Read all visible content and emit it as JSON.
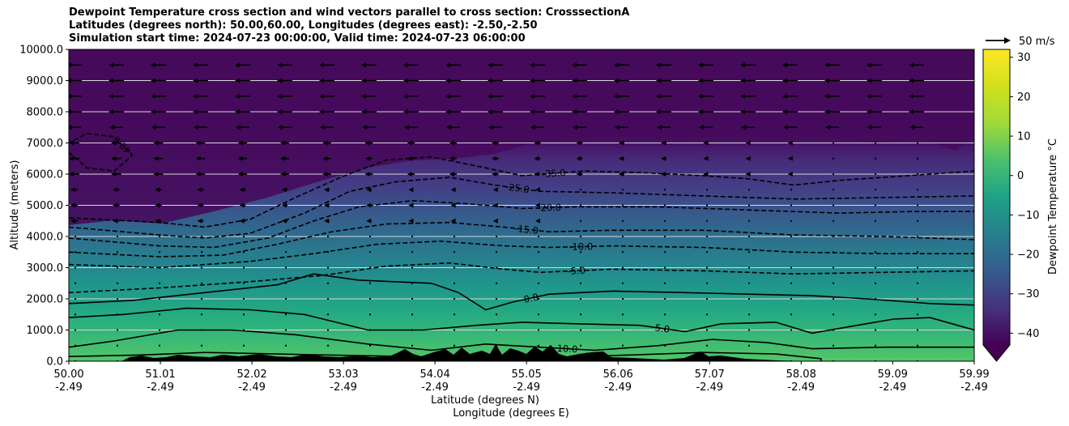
{
  "title_lines": [
    "Dewpoint Temperature cross section and wind vectors parallel to cross section: CrosssectionA",
    "Latitudes (degrees north): 50.00,60.00, Longitudes (degrees east): -2.50,-2.50",
    "Simulation start time: 2024-07-23 00:00:00, Valid time: 2024-07-23 06:00:00"
  ],
  "chart_data": {
    "type": "contour-cross-section",
    "ylabel": "Altitude (meters)",
    "xlabel_lines": [
      "Latitude (degrees N)",
      "Longitude (degrees E)"
    ],
    "xlim": [
      50.0,
      59.99
    ],
    "ylim": [
      0,
      10000
    ],
    "x_ticks": [
      {
        "lat": "50.00",
        "lon": "-2.49"
      },
      {
        "lat": "51.01",
        "lon": "-2.49"
      },
      {
        "lat": "52.02",
        "lon": "-2.49"
      },
      {
        "lat": "53.03",
        "lon": "-2.49"
      },
      {
        "lat": "54.04",
        "lon": "-2.49"
      },
      {
        "lat": "55.05",
        "lon": "-2.49"
      },
      {
        "lat": "56.06",
        "lon": "-2.49"
      },
      {
        "lat": "57.07",
        "lon": "-2.49"
      },
      {
        "lat": "58.08",
        "lon": "-2.49"
      },
      {
        "lat": "59.09",
        "lon": "-2.49"
      },
      {
        "lat": "59.99",
        "lon": "-2.49"
      }
    ],
    "y_ticks": [
      "0.0",
      "1000.0",
      "2000.0",
      "3000.0",
      "4000.0",
      "5000.0",
      "6000.0",
      "7000.0",
      "8000.0",
      "9000.0",
      "10000.0"
    ],
    "grid": "horizontal",
    "colorbar": {
      "label": "Dewpoint Temperature °C",
      "ticks": [
        "30",
        "20",
        "10",
        "0",
        "−10",
        "−20",
        "−30",
        "−40"
      ],
      "range": [
        -43,
        32
      ],
      "colormap": "viridis",
      "extend": "min"
    },
    "wind_key": "50 m/s",
    "contour_lines": [
      {
        "value": -40.0,
        "label": "-40.0",
        "style": "dashed",
        "points": [
          [
            50.0,
            6700
          ],
          [
            50.2,
            6200
          ],
          [
            50.5,
            6100
          ],
          [
            50.7,
            6600
          ],
          [
            50.5,
            7200
          ],
          [
            50.2,
            7300
          ],
          [
            50.0,
            7000
          ]
        ]
      },
      {
        "value": -35.0,
        "label": "-35.0",
        "style": "dashed",
        "points": [
          [
            50.0,
            4600
          ],
          [
            51.0,
            4450
          ],
          [
            51.5,
            4300
          ],
          [
            52.0,
            4550
          ],
          [
            52.5,
            5250
          ],
          [
            53.0,
            5900
          ],
          [
            53.5,
            6450
          ],
          [
            54.0,
            6550
          ],
          [
            54.6,
            6200
          ],
          [
            55.0,
            5950
          ],
          [
            55.7,
            6100
          ],
          [
            56.3,
            6050
          ],
          [
            57.0,
            5950
          ],
          [
            57.5,
            5850
          ],
          [
            58.0,
            5650
          ],
          [
            58.5,
            5800
          ],
          [
            59.0,
            5900
          ],
          [
            59.99,
            6100
          ]
        ]
      },
      {
        "value": -25.0,
        "label": "-25.0",
        "style": "dashed",
        "points": [
          [
            50.0,
            4300
          ],
          [
            51.0,
            4050
          ],
          [
            51.5,
            3950
          ],
          [
            52.0,
            4100
          ],
          [
            52.6,
            4750
          ],
          [
            53.1,
            5450
          ],
          [
            53.6,
            5750
          ],
          [
            54.2,
            5900
          ],
          [
            54.7,
            5650
          ],
          [
            55.2,
            5450
          ],
          [
            56.0,
            5400
          ],
          [
            57.0,
            5300
          ],
          [
            58.0,
            5200
          ],
          [
            59.0,
            5250
          ],
          [
            59.99,
            5300
          ]
        ]
      },
      {
        "value": -20.0,
        "label": "-20.0",
        "style": "dashed",
        "points": [
          [
            50.0,
            3950
          ],
          [
            51.0,
            3700
          ],
          [
            51.6,
            3650
          ],
          [
            52.2,
            3950
          ],
          [
            52.7,
            4500
          ],
          [
            53.2,
            4950
          ],
          [
            53.8,
            5150
          ],
          [
            54.4,
            5050
          ],
          [
            55.0,
            4900
          ],
          [
            55.6,
            4950
          ],
          [
            56.5,
            4950
          ],
          [
            57.5,
            4850
          ],
          [
            58.5,
            4750
          ],
          [
            59.3,
            4800
          ],
          [
            59.99,
            4800
          ]
        ]
      },
      {
        "value": -15.0,
        "label": "-15.0",
        "style": "dashed",
        "points": [
          [
            50.0,
            3500
          ],
          [
            51.0,
            3350
          ],
          [
            51.7,
            3400
          ],
          [
            52.3,
            3750
          ],
          [
            52.9,
            4150
          ],
          [
            53.5,
            4400
          ],
          [
            54.2,
            4450
          ],
          [
            54.8,
            4300
          ],
          [
            55.3,
            4150
          ],
          [
            56.0,
            4200
          ],
          [
            57.0,
            4200
          ],
          [
            58.0,
            4050
          ],
          [
            59.0,
            4000
          ],
          [
            59.99,
            3900
          ]
        ]
      },
      {
        "value": -10.0,
        "label": "-10.0",
        "style": "dashed",
        "points": [
          [
            50.0,
            3100
          ],
          [
            51.0,
            3000
          ],
          [
            52.0,
            3200
          ],
          [
            52.7,
            3450
          ],
          [
            53.4,
            3750
          ],
          [
            54.1,
            3850
          ],
          [
            54.8,
            3700
          ],
          [
            55.3,
            3650
          ],
          [
            56.0,
            3700
          ],
          [
            57.0,
            3650
          ],
          [
            58.0,
            3500
          ],
          [
            59.0,
            3450
          ],
          [
            59.99,
            3450
          ]
        ]
      },
      {
        "value": -5.0,
        "label": "-5.0",
        "style": "dashed",
        "points": [
          [
            50.0,
            2200
          ],
          [
            51.0,
            2350
          ],
          [
            52.0,
            2550
          ],
          [
            52.8,
            2750
          ],
          [
            53.5,
            3050
          ],
          [
            54.2,
            3150
          ],
          [
            54.8,
            2950
          ],
          [
            55.2,
            2850
          ],
          [
            56.0,
            2950
          ],
          [
            57.0,
            2900
          ],
          [
            58.0,
            2800
          ],
          [
            59.0,
            2850
          ],
          [
            59.99,
            2900
          ]
        ]
      },
      {
        "value": 0.0,
        "label": "0.0",
        "style": "solid",
        "points": [
          [
            50.0,
            1850
          ],
          [
            50.7,
            1950
          ],
          [
            51.5,
            2200
          ],
          [
            52.3,
            2450
          ],
          [
            52.7,
            2800
          ],
          [
            53.2,
            2600
          ],
          [
            54.0,
            2500
          ],
          [
            54.3,
            2200
          ],
          [
            54.6,
            1650
          ],
          [
            54.9,
            1900
          ],
          [
            55.3,
            2150
          ],
          [
            56.0,
            2250
          ],
          [
            56.8,
            2200
          ],
          [
            57.5,
            2150
          ],
          [
            58.2,
            2100
          ],
          [
            58.8,
            2000
          ],
          [
            59.5,
            1850
          ],
          [
            59.99,
            1800
          ]
        ]
      },
      {
        "value": 5.0,
        "label": "5.0",
        "style": "solid",
        "points": [
          [
            50.0,
            1400
          ],
          [
            50.6,
            1500
          ],
          [
            51.3,
            1700
          ],
          [
            52.0,
            1650
          ],
          [
            52.6,
            1500
          ],
          [
            53.3,
            1000
          ],
          [
            53.9,
            1000
          ],
          [
            54.5,
            1150
          ],
          [
            55.0,
            1250
          ],
          [
            55.6,
            1200
          ],
          [
            56.3,
            1150
          ],
          [
            56.8,
            950
          ],
          [
            57.2,
            1200
          ],
          [
            57.8,
            1250
          ],
          [
            58.2,
            900
          ],
          [
            58.6,
            1100
          ],
          [
            59.1,
            1350
          ],
          [
            59.5,
            1400
          ],
          [
            59.99,
            1000
          ]
        ]
      },
      {
        "value": 10.0,
        "label": "10.0",
        "style": "solid",
        "points": [
          [
            50.0,
            450
          ],
          [
            50.5,
            650
          ],
          [
            51.2,
            1000
          ],
          [
            51.8,
            1000
          ],
          [
            52.5,
            850
          ],
          [
            53.3,
            550
          ],
          [
            54.0,
            350
          ],
          [
            54.6,
            550
          ],
          [
            55.2,
            450
          ],
          [
            55.8,
            350
          ],
          [
            56.5,
            500
          ],
          [
            57.1,
            700
          ],
          [
            57.7,
            600
          ],
          [
            58.2,
            400
          ],
          [
            59.0,
            450
          ],
          [
            59.99,
            450
          ]
        ]
      },
      {
        "value": 15.0,
        "label": "15.0",
        "style": "solid",
        "points": [
          [
            50.0,
            150
          ],
          [
            50.8,
            200
          ],
          [
            51.5,
            280
          ],
          [
            52.3,
            230
          ],
          [
            53.2,
            180
          ],
          [
            54.1,
            130
          ],
          [
            54.7,
            180
          ],
          [
            55.4,
            130
          ],
          [
            56.2,
            200
          ],
          [
            57.0,
            280
          ],
          [
            57.8,
            230
          ],
          [
            58.3,
            80
          ],
          [
            58.3,
            0
          ]
        ]
      }
    ]
  }
}
